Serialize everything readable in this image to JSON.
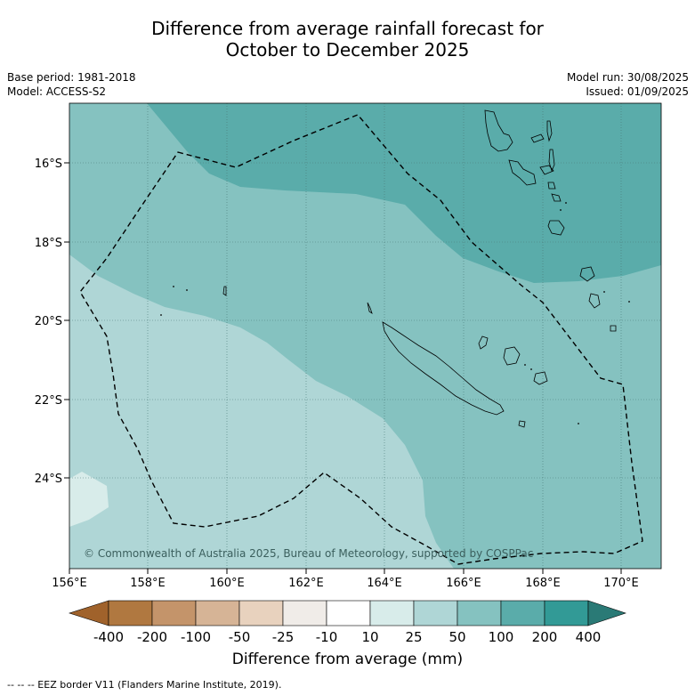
{
  "title_line1": "Difference from average rainfall forecast for",
  "title_line2": "October to December 2025",
  "base_period": "Base period: 1981-2018",
  "model": "Model: ACCESS-S2",
  "model_run": "Model run: 30/08/2025",
  "issued": "Issued: 01/09/2025",
  "copyright": "© Commonwealth of Australia 2025, Bureau of Meteorology, supported by COSPPac",
  "lat_labels": [
    "16°S",
    "18°S",
    "20°S",
    "22°S",
    "24°S"
  ],
  "lon_labels": [
    "156°E",
    "158°E",
    "160°E",
    "162°E",
    "164°E",
    "166°E",
    "168°E",
    "170°E"
  ],
  "colorbar": {
    "label": "Difference from average (mm)",
    "ticks": [
      "-400",
      "-200",
      "-100",
      "-50",
      "-25",
      "-10",
      "10",
      "25",
      "50",
      "100",
      "200",
      "400"
    ],
    "colors": [
      "#a0622b",
      "#b07840",
      "#c4946a",
      "#d6b496",
      "#e8d2be",
      "#f0ece8",
      "#ffffff",
      "#d8ecea",
      "#afd6d6",
      "#85c2c0",
      "#5aacaa",
      "#329a96",
      "#2a7a76"
    ]
  },
  "legend_text": "--  --  -- EEZ border V11 (Flanders Marine Institute, 2019)."
}
